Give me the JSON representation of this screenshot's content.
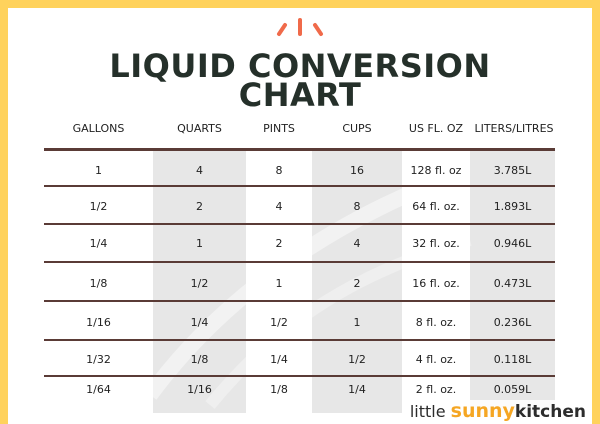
{
  "title_line1": "LIQUID CONVERSION",
  "title_line2": "CHART",
  "columns": [
    "GALLONS",
    "QUARTS",
    "PINTS",
    "CUPS",
    "US FL. OZ",
    "LITERS/LITRES"
  ],
  "rows": [
    [
      "1",
      "4",
      "8",
      "16",
      "128 fl. oz",
      "3.785L"
    ],
    [
      "1/2",
      "2",
      "4",
      "8",
      "64 fl. oz.",
      "1.893L"
    ],
    [
      "1/4",
      "1",
      "2",
      "4",
      "32 fl. oz.",
      "0.946L"
    ],
    [
      "1/8",
      "1/2",
      "1",
      "2",
      "16 fl. oz.",
      "0.473L"
    ],
    [
      "1/16",
      "1/4",
      "1/2",
      "1",
      "8 fl. oz.",
      "0.236L"
    ],
    [
      "1/32",
      "1/8",
      "1/4",
      "1/2",
      "4 fl. oz.",
      "0.118L"
    ],
    [
      "1/64",
      "1/16",
      "1/8",
      "1/4",
      "2 fl. oz.",
      "0.059L"
    ]
  ],
  "brand": {
    "part1": "little",
    "part2": "sunny",
    "part3": "kitchen"
  },
  "colors": {
    "border": "#ffd25c",
    "title": "#25302a",
    "accent": "#f06a4a",
    "rule": "#5a3b36",
    "shade": "#e7e7e7",
    "brand_accent": "#f5a623"
  }
}
